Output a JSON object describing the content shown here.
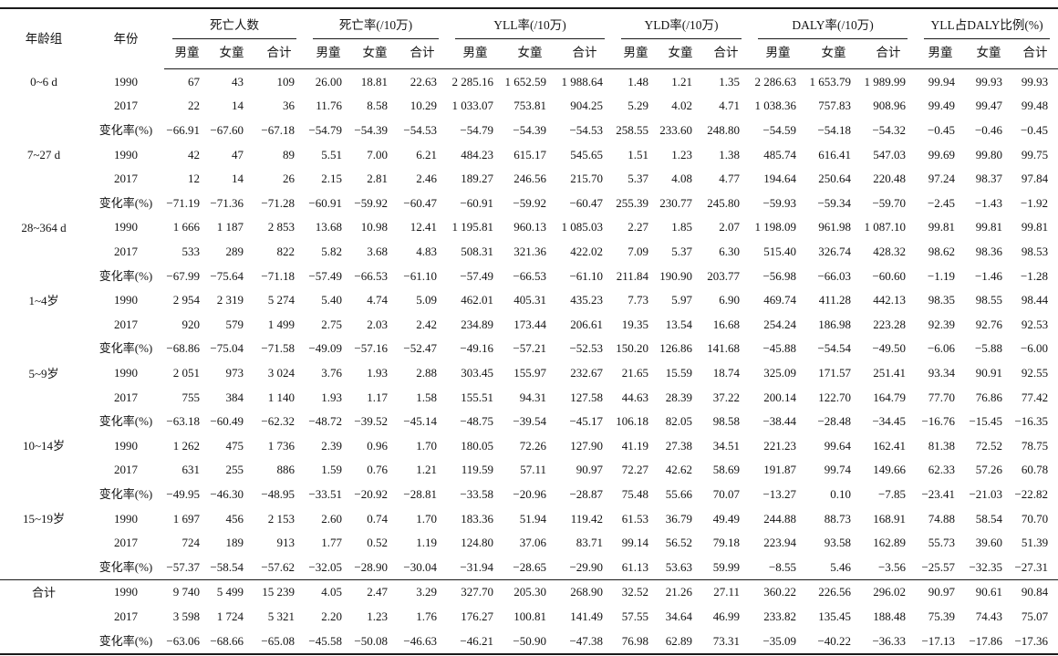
{
  "table": {
    "header": {
      "age_label": "年龄组",
      "year_label": "年份",
      "groups": [
        {
          "label": "死亡人数"
        },
        {
          "label": "死亡率(/10万)"
        },
        {
          "label": "YLL率(/10万)"
        },
        {
          "label": "YLD率(/10万)"
        },
        {
          "label": "DALY率(/10万)"
        },
        {
          "label": "YLL占DALY比例(%)"
        }
      ],
      "sub_labels": [
        "男童",
        "女童",
        "合计"
      ]
    },
    "groups": [
      {
        "age": "0~6 d",
        "rows": [
          {
            "label": "1990",
            "values": [
              "67",
              "43",
              "109",
              "26.00",
              "18.81",
              "22.63",
              "2 285.16",
              "1 652.59",
              "1 988.64",
              "1.48",
              "1.21",
              "1.35",
              "2 286.63",
              "1 653.79",
              "1 989.99",
              "99.94",
              "99.93",
              "99.93"
            ]
          },
          {
            "label": "2017",
            "values": [
              "22",
              "14",
              "36",
              "11.76",
              "8.58",
              "10.29",
              "1 033.07",
              "753.81",
              "904.25",
              "5.29",
              "4.02",
              "4.71",
              "1 038.36",
              "757.83",
              "908.96",
              "99.49",
              "99.47",
              "99.48"
            ]
          },
          {
            "label": "变化率(%)",
            "values": [
              "−66.91",
              "−67.60",
              "−67.18",
              "−54.79",
              "−54.39",
              "−54.53",
              "−54.79",
              "−54.39",
              "−54.53",
              "258.55",
              "233.60",
              "248.80",
              "−54.59",
              "−54.18",
              "−54.32",
              "−0.45",
              "−0.46",
              "−0.45"
            ]
          }
        ]
      },
      {
        "age": "7~27 d",
        "rows": [
          {
            "label": "1990",
            "values": [
              "42",
              "47",
              "89",
              "5.51",
              "7.00",
              "6.21",
              "484.23",
              "615.17",
              "545.65",
              "1.51",
              "1.23",
              "1.38",
              "485.74",
              "616.41",
              "547.03",
              "99.69",
              "99.80",
              "99.75"
            ]
          },
          {
            "label": "2017",
            "values": [
              "12",
              "14",
              "26",
              "2.15",
              "2.81",
              "2.46",
              "189.27",
              "246.56",
              "215.70",
              "5.37",
              "4.08",
              "4.77",
              "194.64",
              "250.64",
              "220.48",
              "97.24",
              "98.37",
              "97.84"
            ]
          },
          {
            "label": "变化率(%)",
            "values": [
              "−71.19",
              "−71.36",
              "−71.28",
              "−60.91",
              "−59.92",
              "−60.47",
              "−60.91",
              "−59.92",
              "−60.47",
              "255.39",
              "230.77",
              "245.80",
              "−59.93",
              "−59.34",
              "−59.70",
              "−2.45",
              "−1.43",
              "−1.92"
            ]
          }
        ]
      },
      {
        "age": "28~364 d",
        "rows": [
          {
            "label": "1990",
            "values": [
              "1 666",
              "1 187",
              "2 853",
              "13.68",
              "10.98",
              "12.41",
              "1 195.81",
              "960.13",
              "1 085.03",
              "2.27",
              "1.85",
              "2.07",
              "1 198.09",
              "961.98",
              "1 087.10",
              "99.81",
              "99.81",
              "99.81"
            ]
          },
          {
            "label": "2017",
            "values": [
              "533",
              "289",
              "822",
              "5.82",
              "3.68",
              "4.83",
              "508.31",
              "321.36",
              "422.02",
              "7.09",
              "5.37",
              "6.30",
              "515.40",
              "326.74",
              "428.32",
              "98.62",
              "98.36",
              "98.53"
            ]
          },
          {
            "label": "变化率(%)",
            "values": [
              "−67.99",
              "−75.64",
              "−71.18",
              "−57.49",
              "−66.53",
              "−61.10",
              "−57.49",
              "−66.53",
              "−61.10",
              "211.84",
              "190.90",
              "203.77",
              "−56.98",
              "−66.03",
              "−60.60",
              "−1.19",
              "−1.46",
              "−1.28"
            ]
          }
        ]
      },
      {
        "age": "1~4岁",
        "rows": [
          {
            "label": "1990",
            "values": [
              "2 954",
              "2 319",
              "5 274",
              "5.40",
              "4.74",
              "5.09",
              "462.01",
              "405.31",
              "435.23",
              "7.73",
              "5.97",
              "6.90",
              "469.74",
              "411.28",
              "442.13",
              "98.35",
              "98.55",
              "98.44"
            ]
          },
          {
            "label": "2017",
            "values": [
              "920",
              "579",
              "1 499",
              "2.75",
              "2.03",
              "2.42",
              "234.89",
              "173.44",
              "206.61",
              "19.35",
              "13.54",
              "16.68",
              "254.24",
              "186.98",
              "223.28",
              "92.39",
              "92.76",
              "92.53"
            ]
          },
          {
            "label": "变化率(%)",
            "values": [
              "−68.86",
              "−75.04",
              "−71.58",
              "−49.09",
              "−57.16",
              "−52.47",
              "−49.16",
              "−57.21",
              "−52.53",
              "150.20",
              "126.86",
              "141.68",
              "−45.88",
              "−54.54",
              "−49.50",
              "−6.06",
              "−5.88",
              "−6.00"
            ]
          }
        ]
      },
      {
        "age": "5~9岁",
        "rows": [
          {
            "label": "1990",
            "values": [
              "2 051",
              "973",
              "3 024",
              "3.76",
              "1.93",
              "2.88",
              "303.45",
              "155.97",
              "232.67",
              "21.65",
              "15.59",
              "18.74",
              "325.09",
              "171.57",
              "251.41",
              "93.34",
              "90.91",
              "92.55"
            ]
          },
          {
            "label": "2017",
            "values": [
              "755",
              "384",
              "1 140",
              "1.93",
              "1.17",
              "1.58",
              "155.51",
              "94.31",
              "127.58",
              "44.63",
              "28.39",
              "37.22",
              "200.14",
              "122.70",
              "164.79",
              "77.70",
              "76.86",
              "77.42"
            ]
          },
          {
            "label": "变化率(%)",
            "values": [
              "−63.18",
              "−60.49",
              "−62.32",
              "−48.72",
              "−39.52",
              "−45.14",
              "−48.75",
              "−39.54",
              "−45.17",
              "106.18",
              "82.05",
              "98.58",
              "−38.44",
              "−28.48",
              "−34.45",
              "−16.76",
              "−15.45",
              "−16.35"
            ]
          }
        ]
      },
      {
        "age": "10~14岁",
        "rows": [
          {
            "label": "1990",
            "values": [
              "1 262",
              "475",
              "1 736",
              "2.39",
              "0.96",
              "1.70",
              "180.05",
              "72.26",
              "127.90",
              "41.19",
              "27.38",
              "34.51",
              "221.23",
              "99.64",
              "162.41",
              "81.38",
              "72.52",
              "78.75"
            ]
          },
          {
            "label": "2017",
            "values": [
              "631",
              "255",
              "886",
              "1.59",
              "0.76",
              "1.21",
              "119.59",
              "57.11",
              "90.97",
              "72.27",
              "42.62",
              "58.69",
              "191.87",
              "99.74",
              "149.66",
              "62.33",
              "57.26",
              "60.78"
            ]
          },
          {
            "label": "变化率(%)",
            "values": [
              "−49.95",
              "−46.30",
              "−48.95",
              "−33.51",
              "−20.92",
              "−28.81",
              "−33.58",
              "−20.96",
              "−28.87",
              "75.48",
              "55.66",
              "70.07",
              "−13.27",
              "0.10",
              "−7.85",
              "−23.41",
              "−21.03",
              "−22.82"
            ]
          }
        ]
      },
      {
        "age": "15~19岁",
        "rows": [
          {
            "label": "1990",
            "values": [
              "1 697",
              "456",
              "2 153",
              "2.60",
              "0.74",
              "1.70",
              "183.36",
              "51.94",
              "119.42",
              "61.53",
              "36.79",
              "49.49",
              "244.88",
              "88.73",
              "168.91",
              "74.88",
              "58.54",
              "70.70"
            ]
          },
          {
            "label": "2017",
            "values": [
              "724",
              "189",
              "913",
              "1.77",
              "0.52",
              "1.19",
              "124.80",
              "37.06",
              "83.71",
              "99.14",
              "56.52",
              "79.18",
              "223.94",
              "93.58",
              "162.89",
              "55.73",
              "39.60",
              "51.39"
            ]
          },
          {
            "label": "变化率(%)",
            "values": [
              "−57.37",
              "−58.54",
              "−57.62",
              "−32.05",
              "−28.90",
              "−30.04",
              "−31.94",
              "−28.65",
              "−29.90",
              "61.13",
              "53.63",
              "59.99",
              "−8.55",
              "5.46",
              "−3.56",
              "−25.57",
              "−32.35",
              "−27.31"
            ]
          }
        ]
      },
      {
        "age": "合计",
        "rows": [
          {
            "label": "1990",
            "values": [
              "9 740",
              "5 499",
              "15 239",
              "4.05",
              "2.47",
              "3.29",
              "327.70",
              "205.30",
              "268.90",
              "32.52",
              "21.26",
              "27.11",
              "360.22",
              "226.56",
              "296.02",
              "90.97",
              "90.61",
              "90.84"
            ]
          },
          {
            "label": "2017",
            "values": [
              "3 598",
              "1 724",
              "5 321",
              "2.20",
              "1.23",
              "1.76",
              "176.27",
              "100.81",
              "141.49",
              "57.55",
              "34.64",
              "46.99",
              "233.82",
              "135.45",
              "188.48",
              "75.39",
              "74.43",
              "75.07"
            ]
          },
          {
            "label": "变化率(%)",
            "values": [
              "−63.06",
              "−68.66",
              "−65.08",
              "−45.58",
              "−50.08",
              "−46.63",
              "−46.21",
              "−50.90",
              "−47.38",
              "76.98",
              "62.89",
              "73.31",
              "−35.09",
              "−40.22",
              "−36.33",
              "−17.13",
              "−17.86",
              "−17.36"
            ]
          }
        ]
      }
    ]
  }
}
